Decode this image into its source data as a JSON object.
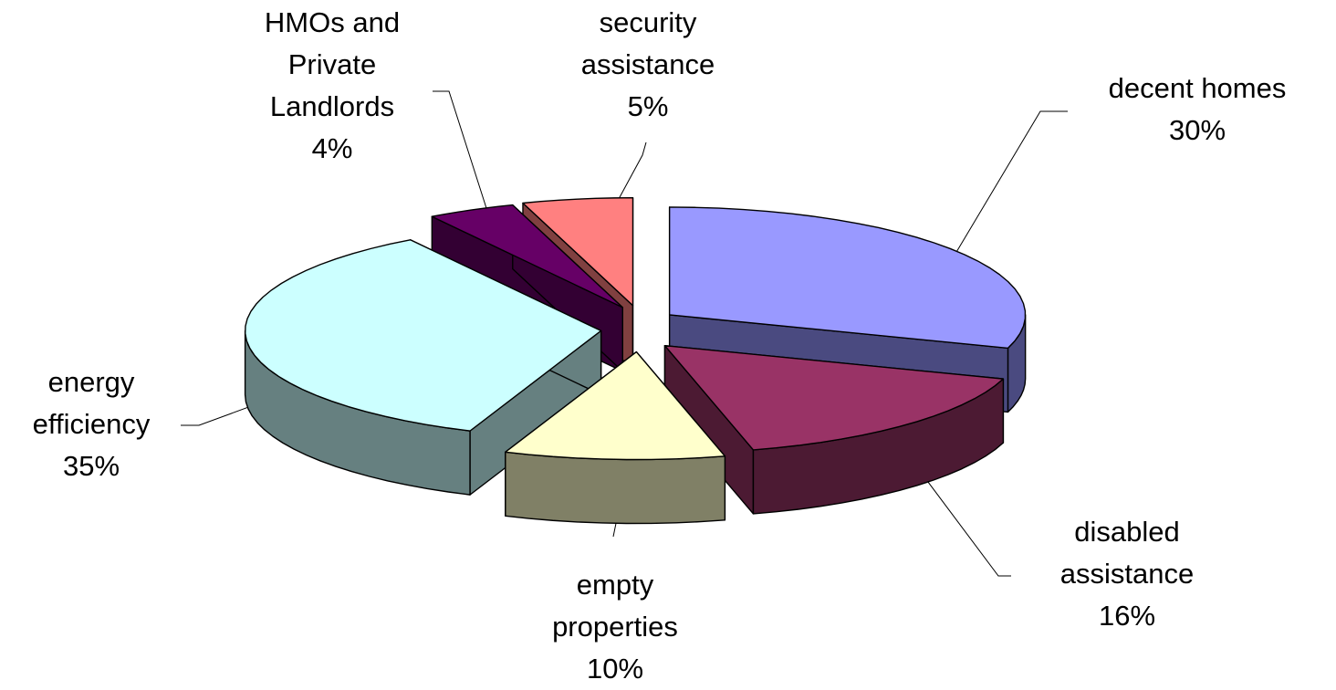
{
  "chart_data": {
    "type": "pie",
    "style": "3d-exploded",
    "categories": [
      "decent homes",
      "disabled assistance",
      "empty properties",
      "energy efficiency",
      "HMOs and Private Landlords",
      "security assistance"
    ],
    "values": [
      30,
      16,
      10,
      35,
      4,
      5
    ],
    "unit": "%",
    "labels": [
      {
        "key": "decent_homes",
        "lines": [
          "decent homes"
        ],
        "pct": "30%"
      },
      {
        "key": "disabled_assistance",
        "lines": [
          "disabled",
          "assistance"
        ],
        "pct": "16%"
      },
      {
        "key": "empty_properties",
        "lines": [
          "empty",
          "properties"
        ],
        "pct": "10%"
      },
      {
        "key": "energy_efficiency",
        "lines": [
          "energy",
          "efficiency"
        ],
        "pct": "35%"
      },
      {
        "key": "hmos_private_landlords",
        "lines": [
          "HMOs and",
          "Private",
          "Landlords"
        ],
        "pct": "4%"
      },
      {
        "key": "security_assistance",
        "lines": [
          "security",
          "assistance"
        ],
        "pct": "5%"
      }
    ],
    "colors": {
      "decent_homes": {
        "top": "#9999ff",
        "side": "#4a4a80"
      },
      "disabled_assistance": {
        "top": "#993366",
        "side": "#4c1a33"
      },
      "empty_properties": {
        "top": "#ffffcc",
        "side": "#808066"
      },
      "energy_efficiency": {
        "top": "#ccffff",
        "side": "#668080"
      },
      "hmos_private_landlords": {
        "top": "#660066",
        "side": "#330033"
      },
      "security_assistance": {
        "top": "#ff8080",
        "side": "#804040"
      }
    },
    "legend": "none",
    "title": ""
  }
}
